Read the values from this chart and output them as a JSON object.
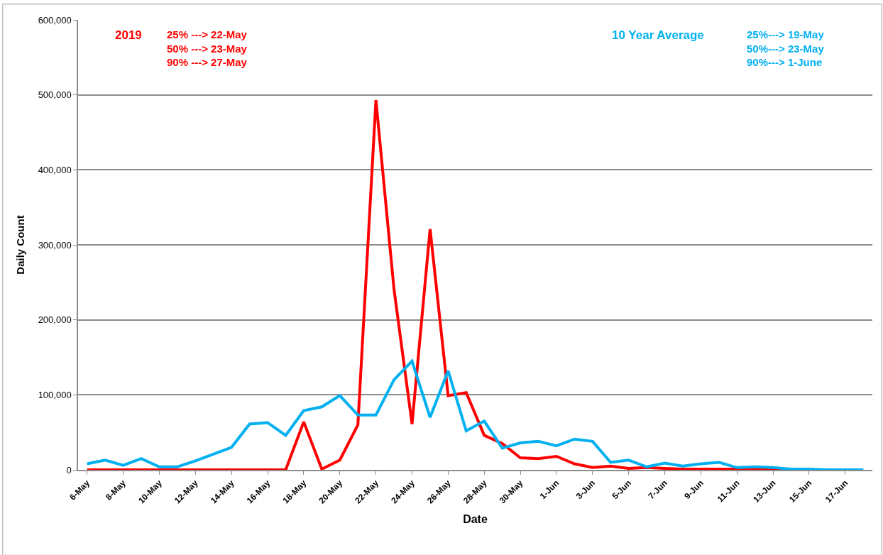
{
  "chart_data": {
    "type": "line",
    "xlabel": "Date",
    "ylabel": "Daily Count",
    "categories": [
      "6-May",
      null,
      "8-May",
      null,
      "10-May",
      null,
      "12-May",
      null,
      "14-May",
      null,
      "16-May",
      null,
      "18-May",
      null,
      "20-May",
      null,
      "22-May",
      null,
      "24-May",
      null,
      "26-May",
      null,
      "28-May",
      null,
      "30-May",
      null,
      "1-Jun",
      null,
      "3-Jun",
      null,
      "5-Jun",
      null,
      "7-Jun",
      null,
      "9-Jun",
      null,
      "11-Jun",
      null,
      "13-Jun",
      null,
      "15-Jun",
      null,
      "17-Jun",
      null
    ],
    "series": [
      {
        "name": "2019",
        "color": "#ff0000",
        "values": [
          0,
          0,
          0,
          0,
          0,
          0,
          0,
          0,
          0,
          0,
          0,
          0,
          64000,
          1000,
          13000,
          60000,
          493000,
          241000,
          61000,
          321000,
          99000,
          103000,
          46000,
          35000,
          16000,
          15000,
          18000,
          8000,
          3000,
          5000,
          2000,
          3000,
          2000,
          1000,
          1000,
          1000,
          1000,
          1000,
          0,
          0,
          null,
          null,
          null,
          null
        ]
      },
      {
        "name": "10 Year Average",
        "color": "#00b0f0",
        "values": [
          8000,
          13000,
          6000,
          15000,
          4000,
          4000,
          12000,
          21000,
          30000,
          61000,
          63000,
          46000,
          79000,
          84000,
          99000,
          73000,
          73000,
          120000,
          145000,
          70000,
          132000,
          52000,
          65000,
          29000,
          36000,
          38000,
          32000,
          41000,
          38000,
          10000,
          13000,
          4000,
          9000,
          5000,
          8000,
          10000,
          3000,
          4000,
          3000,
          1000,
          1000,
          0,
          0,
          0
        ]
      }
    ],
    "annotations": [
      "25% ---> 22-May\n50% ---> 23-May\n90% ---> 27-May",
      "25%---> 19-May\n50%---> 23-May\n90%---> 1-June"
    ],
    "ylim": [
      0,
      600000
    ],
    "yticks": [
      {
        "value": 0,
        "label": "0"
      },
      {
        "value": 100000,
        "label": "100,000"
      },
      {
        "value": 200000,
        "label": "200,000"
      },
      {
        "value": 300000,
        "label": "300,000"
      },
      {
        "value": 400000,
        "label": "400,000"
      },
      {
        "value": 500000,
        "label": "500,000"
      },
      {
        "value": 600000,
        "label": "600,000"
      }
    ],
    "grid": "y",
    "line_style": "solid",
    "marker": "none"
  }
}
